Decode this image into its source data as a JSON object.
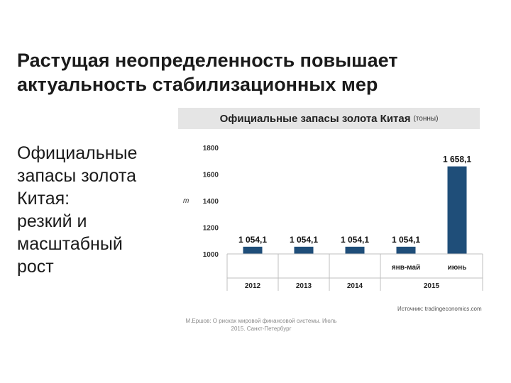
{
  "slide": {
    "title": "Растущая неопределенность повышает актуальность стабилизационных мер",
    "side_lines": [
      "Официальные",
      "запасы золота",
      "Китая:",
      "резкий и",
      "масштабный",
      "рост"
    ]
  },
  "footer": {
    "source": "Источник: tradingeconomics.com",
    "citation_lines": [
      "М.Ершов: О рисках мировой финансовой системы. Июль",
      "2015. Санкт-Петербург"
    ]
  },
  "colors": {
    "bar": "#1f4e79",
    "header_bg": "#e5e5e5",
    "text": "#1b1b1b"
  },
  "chart_data": {
    "type": "bar",
    "title": "Официальные запасы золота Китая",
    "title_unit": "(тонны)",
    "ylabel": "т",
    "ylim": [
      1000,
      1800
    ],
    "yticks": [
      "1000",
      "1200",
      "1400",
      "1600",
      "1800"
    ],
    "grid": false,
    "bars": [
      {
        "value": 1054.1,
        "label": "1 054,1",
        "month": ""
      },
      {
        "value": 1054.1,
        "label": "1 054,1",
        "month": ""
      },
      {
        "value": 1054.1,
        "label": "1 054,1",
        "month": ""
      },
      {
        "value": 1054.1,
        "label": "1 054,1",
        "month": "янв-май"
      },
      {
        "value": 1658.1,
        "label": "1 658,1",
        "month": "июнь"
      }
    ],
    "year_groups": [
      {
        "label": "2012",
        "count": 1
      },
      {
        "label": "2013",
        "count": 1
      },
      {
        "label": "2014",
        "count": 1
      },
      {
        "label": "2015",
        "count": 2
      }
    ]
  }
}
